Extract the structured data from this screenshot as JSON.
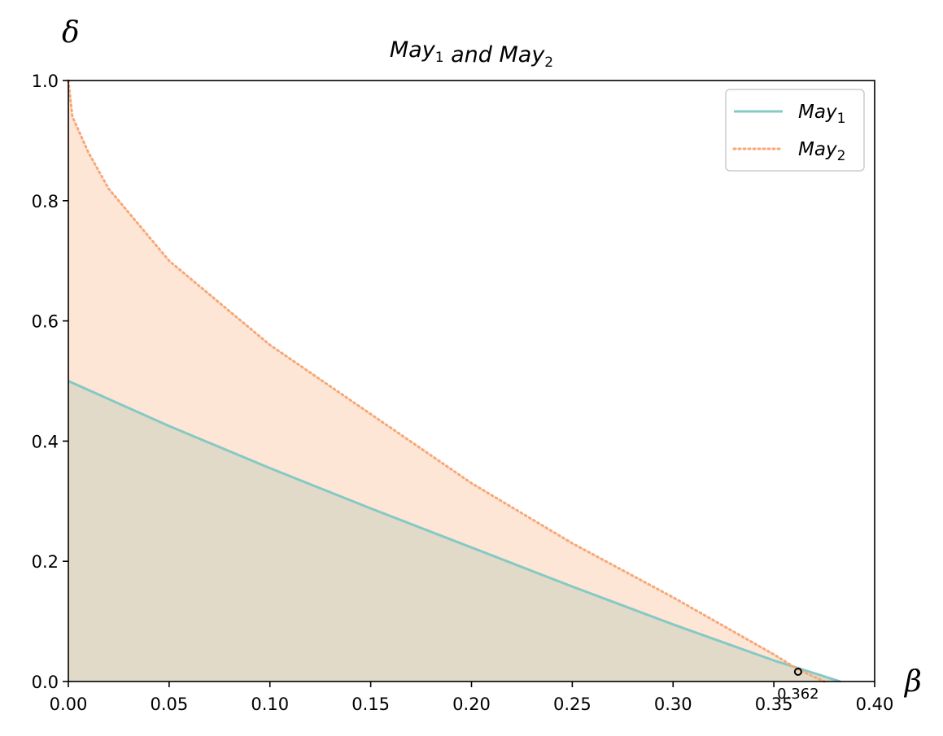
{
  "chart_data": {
    "type": "area",
    "title": {
      "parts": [
        {
          "text": "May",
          "sub": "1"
        },
        {
          "text": " and May",
          "sub": "2"
        }
      ]
    },
    "xlabel": "β",
    "ylabel": "δ",
    "xlim": [
      0,
      0.4
    ],
    "ylim": [
      0,
      1.0
    ],
    "xticks": [
      "0.00",
      "0.05",
      "0.10",
      "0.15",
      "0.20",
      "0.25",
      "0.30",
      "0.35",
      "0.40"
    ],
    "yticks": [
      "0.0",
      "0.2",
      "0.4",
      "0.6",
      "0.8",
      "1.0"
    ],
    "grid": false,
    "legend_position": "top-right",
    "series": [
      {
        "name": "May",
        "name_sub": "1",
        "style": "solid",
        "color": "#86c9c4",
        "fill_color": "#e2dac9",
        "x": [
          0,
          0.05,
          0.1,
          0.15,
          0.2,
          0.25,
          0.3,
          0.35,
          0.383
        ],
        "y": [
          0.5,
          0.425,
          0.355,
          0.288,
          0.223,
          0.158,
          0.095,
          0.035,
          0.0
        ]
      },
      {
        "name": "May",
        "name_sub": "2",
        "style": "dotted",
        "color": "#f8a878",
        "fill_color": "#fde6d6",
        "x": [
          0,
          0.002,
          0.01,
          0.02,
          0.05,
          0.1,
          0.15,
          0.2,
          0.25,
          0.3,
          0.35,
          0.362,
          0.375
        ],
        "y": [
          1.0,
          0.94,
          0.88,
          0.82,
          0.7,
          0.56,
          0.445,
          0.33,
          0.23,
          0.14,
          0.045,
          0.02,
          0.0
        ]
      }
    ],
    "annotations": [
      {
        "text": "0.362",
        "x": 0.362,
        "y": 0.0
      }
    ]
  }
}
